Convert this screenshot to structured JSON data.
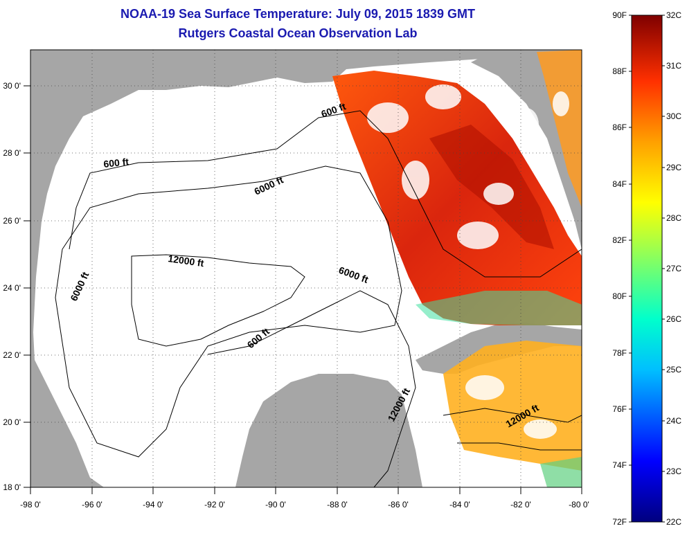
{
  "title": "NOAA-19 Sea Surface Temperature:  July 09, 2015 1839 GMT",
  "subtitle": "Rutgers Coastal Ocean Observation Lab",
  "colors": {
    "title": "#1a1ab0",
    "land": "#a6a6a6",
    "cloud": "#ffffff",
    "warm": "#e03000",
    "hot": "#a00000",
    "mid": "#ffa000"
  },
  "axes": {
    "lon_labels": [
      "-98 0'",
      "-96 0'",
      "-94 0'",
      "-92 0'",
      "-90 0'",
      "-88 0'",
      "-86 0'",
      "-84 0'",
      "-82 0'",
      "-80 0'"
    ],
    "lat_labels": [
      "30 0'",
      "28 0'",
      "26 0'",
      "24 0'",
      "22 0'",
      "20 0'",
      "18 0'"
    ]
  },
  "contour_labels": [
    {
      "id": "c600a",
      "text": "600 ft"
    },
    {
      "id": "c600b",
      "text": "600 ft"
    },
    {
      "id": "c600c",
      "text": "600 ft"
    },
    {
      "id": "c6000a",
      "text": "6000 ft"
    },
    {
      "id": "c6000b",
      "text": "6000 ft"
    },
    {
      "id": "c6000c",
      "text": "6000 ft"
    },
    {
      "id": "c12000a",
      "text": "12000 ft"
    },
    {
      "id": "c12000b",
      "text": "12000 ft"
    },
    {
      "id": "c12000c",
      "text": "12000 ft"
    }
  ],
  "colorbar": {
    "f_labels": [
      "90F",
      "88F",
      "86F",
      "84F",
      "82F",
      "80F",
      "78F",
      "76F",
      "74F",
      "72F"
    ],
    "c_labels": [
      "32C",
      "31C",
      "30C",
      "29C",
      "28C",
      "27C",
      "26C",
      "25C",
      "24C",
      "23C",
      "22C"
    ]
  }
}
